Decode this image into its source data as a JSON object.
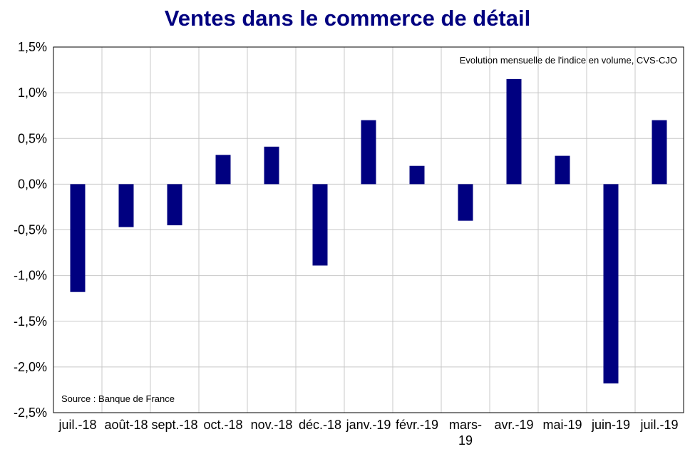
{
  "chart_data": {
    "type": "bar",
    "title": "Ventes dans le commerce de détail",
    "subtitle": "Evolution mensuelle de l'indice en volume, CVS-CJO",
    "source": "Source : Banque de France",
    "xlabel": "",
    "ylabel": "",
    "categories": [
      "juil.-18",
      "août-18",
      "sept.-18",
      "oct.-18",
      "nov.-18",
      "déc.-18",
      "janv.-19",
      "févr.-19",
      "mars-19",
      "avr.-19",
      "mai-19",
      "juin-19",
      "juil.-19"
    ],
    "category_lines": [
      [
        "juil.-18"
      ],
      [
        "août-18"
      ],
      [
        "sept.-18"
      ],
      [
        "oct.-18"
      ],
      [
        "nov.-18"
      ],
      [
        "déc.-18"
      ],
      [
        "janv.-19"
      ],
      [
        "févr.-19"
      ],
      [
        "mars-",
        "19"
      ],
      [
        "avr.-19"
      ],
      [
        "mai-19"
      ],
      [
        "juin-19"
      ],
      [
        "juil.-19"
      ]
    ],
    "values": [
      -1.18,
      -0.47,
      -0.45,
      0.32,
      0.41,
      -0.89,
      0.7,
      0.2,
      -0.4,
      1.15,
      0.31,
      -2.18,
      0.7
    ],
    "ylim": [
      -2.5,
      1.5
    ],
    "yticks": [
      1.5,
      1.0,
      0.5,
      0.0,
      -0.5,
      -1.0,
      -1.5,
      -2.0,
      -2.5
    ],
    "ytick_labels": [
      "1,5%",
      "1,0%",
      "0,5%",
      "0,0%",
      "-0,5%",
      "-1,0%",
      "-1,5%",
      "-2,0%",
      "-2,5%"
    ],
    "grid": true,
    "colors": {
      "bar": "#000080",
      "title": "#000080",
      "grid": "#c8c8c8",
      "axis": "#000000"
    }
  }
}
